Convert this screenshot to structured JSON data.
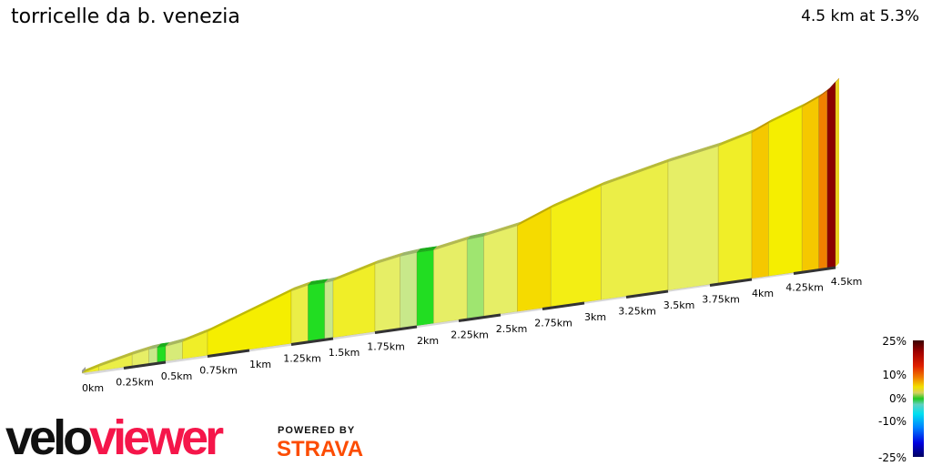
{
  "header": {
    "title": "torricelle da b. venezia",
    "summary": "4.5 km at 5.3%"
  },
  "chart_data": {
    "type": "area",
    "title": "torricelle da b. venezia",
    "xlabel": "",
    "ylabel": "",
    "xlim": [
      0,
      4.5
    ],
    "x_ticks": [
      "0km",
      "0.25km",
      "0.5km",
      "0.75km",
      "1km",
      "1.25km",
      "1.5km",
      "1.75km",
      "2km",
      "2.25km",
      "2.5km",
      "2.75km",
      "3km",
      "3.25km",
      "3.5km",
      "3.75km",
      "4km",
      "4.25km",
      "4.5km"
    ],
    "segments_note_units": "distance km, gradient %",
    "segments": [
      {
        "from": 0.0,
        "to": 0.1,
        "gradient": 6
      },
      {
        "from": 0.1,
        "to": 0.3,
        "gradient": 5
      },
      {
        "from": 0.3,
        "to": 0.4,
        "gradient": 4
      },
      {
        "from": 0.4,
        "to": 0.45,
        "gradient": 2
      },
      {
        "from": 0.45,
        "to": 0.5,
        "gradient": 0
      },
      {
        "from": 0.5,
        "to": 0.6,
        "gradient": 3
      },
      {
        "from": 0.6,
        "to": 0.75,
        "gradient": 6
      },
      {
        "from": 0.75,
        "to": 1.25,
        "gradient": 8
      },
      {
        "from": 1.25,
        "to": 1.35,
        "gradient": 5
      },
      {
        "from": 1.35,
        "to": 1.45,
        "gradient": 0
      },
      {
        "from": 1.45,
        "to": 1.5,
        "gradient": 2
      },
      {
        "from": 1.5,
        "to": 1.75,
        "gradient": 6
      },
      {
        "from": 1.75,
        "to": 1.9,
        "gradient": 4
      },
      {
        "from": 1.9,
        "to": 2.0,
        "gradient": 2
      },
      {
        "from": 2.0,
        "to": 2.1,
        "gradient": 0
      },
      {
        "from": 2.1,
        "to": 2.3,
        "gradient": 4
      },
      {
        "from": 2.3,
        "to": 2.4,
        "gradient": 1.5
      },
      {
        "from": 2.4,
        "to": 2.6,
        "gradient": 4
      },
      {
        "from": 2.6,
        "to": 2.8,
        "gradient": 9
      },
      {
        "from": 2.8,
        "to": 3.1,
        "gradient": 7
      },
      {
        "from": 3.1,
        "to": 3.5,
        "gradient": 5
      },
      {
        "from": 3.5,
        "to": 3.8,
        "gradient": 4
      },
      {
        "from": 3.8,
        "to": 4.0,
        "gradient": 6
      },
      {
        "from": 4.0,
        "to": 4.1,
        "gradient": 10
      },
      {
        "from": 4.1,
        "to": 4.3,
        "gradient": 8
      },
      {
        "from": 4.3,
        "to": 4.4,
        "gradient": 10
      },
      {
        "from": 4.4,
        "to": 4.45,
        "gradient": 14
      },
      {
        "from": 4.45,
        "to": 4.5,
        "gradient": 22
      }
    ],
    "legend": {
      "title": "",
      "labels": [
        "25%",
        "10%",
        "0%",
        "-10%",
        "-25%"
      ],
      "placement": "bottom-right"
    }
  },
  "branding": {
    "logo_part1": "velo",
    "logo_part2": "viewer",
    "powered_by": "POWERED BY",
    "strava": "STRAVA",
    "logo_red": "#f5164a",
    "strava_orange": "#fc4c02"
  }
}
